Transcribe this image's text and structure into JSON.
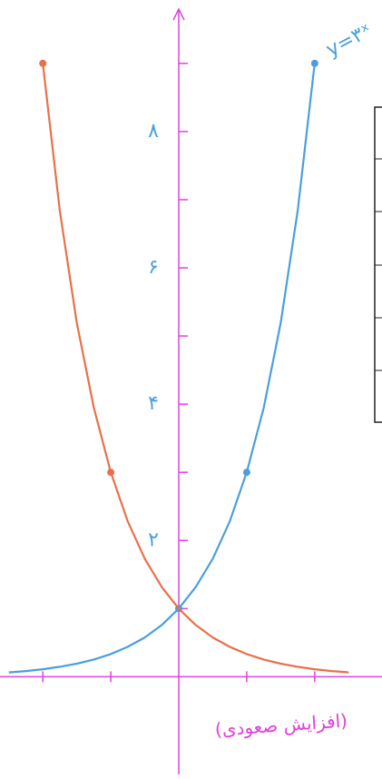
{
  "chart_data": {
    "type": "line",
    "annotations": [
      "y=۳ˣ",
      "(افزایش صعودی)"
    ],
    "x": [
      -2.5,
      -2.25,
      -2,
      -1.75,
      -1.5,
      -1.25,
      -1,
      -0.75,
      -0.5,
      -0.25,
      0,
      0.25,
      0.5,
      0.75,
      1,
      1.25,
      1.5,
      1.75,
      2,
      2.25,
      2.5
    ],
    "series": [
      {
        "color": "#4a9fdc",
        "values": [
          0.064,
          0.084,
          0.111,
          0.146,
          0.192,
          0.253,
          0.333,
          0.439,
          0.577,
          0.76,
          1,
          1.316,
          1.732,
          2.28,
          3,
          3.948,
          5.196,
          6.839,
          9,
          null,
          null
        ],
        "points": [
          10,
          14,
          18
        ]
      },
      {
        "color": "#e8704a",
        "values": [
          null,
          null,
          9,
          6.839,
          5.196,
          3.948,
          3,
          2.28,
          1.732,
          1.316,
          1,
          0.76,
          0.577,
          0.439,
          0.333,
          0.253,
          0.192,
          0.146,
          0.111,
          0.084,
          0.064
        ],
        "points": [
          2,
          6
        ]
      }
    ],
    "xlim": [
      -2.63,
      2.99
    ],
    "ylim": [
      -1.5,
      9.93
    ],
    "xticks": [
      -2,
      -1,
      1,
      2
    ],
    "yticks": [
      {
        "value": 2,
        "label": "۲"
      },
      {
        "value": 4,
        "label": "۴"
      },
      {
        "value": 6,
        "label": "۶"
      },
      {
        "value": 8,
        "label": "۸"
      }
    ],
    "minor_yticks": [
      1,
      3,
      5,
      7,
      9
    ],
    "axis_color": "#e040e0"
  }
}
